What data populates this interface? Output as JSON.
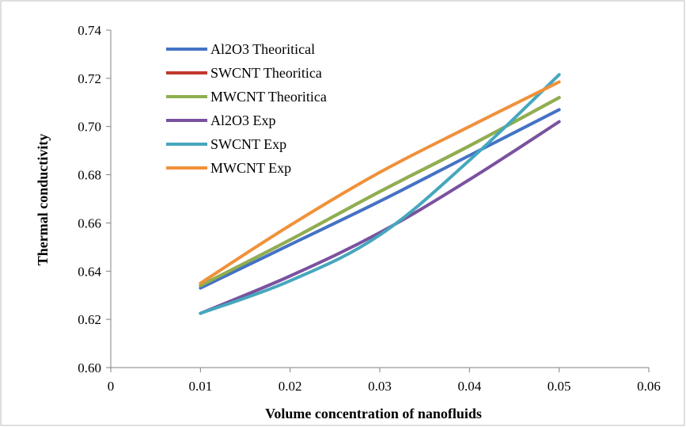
{
  "chart_data": {
    "type": "line",
    "title": "",
    "xlabel": "Volume concentration of nanofluids",
    "ylabel": "Thermal conductivity",
    "xlim": [
      0,
      0.06
    ],
    "ylim": [
      0.6,
      0.74
    ],
    "xticks": [
      "0",
      "0.01",
      "0.02",
      "0.03",
      "0.04",
      "0.05",
      "0.06"
    ],
    "yticks": [
      "0.60",
      "0.62",
      "0.64",
      "0.66",
      "0.68",
      "0.70",
      "0.72",
      "0.74"
    ],
    "grid": false,
    "legend_position": "top-left",
    "x": [
      0.01,
      0.02,
      0.03,
      0.04,
      0.05
    ],
    "series": [
      {
        "name": "Al2O3 Theoritical",
        "color": "#4472C4",
        "values": [
          0.633,
          0.651,
          0.669,
          0.688,
          0.707
        ]
      },
      {
        "name": "SWCNT Theoritica",
        "color": "#C0392B",
        "values": [
          0.634,
          0.653,
          0.673,
          0.692,
          0.712
        ]
      },
      {
        "name": "MWCNT Theoritica",
        "color": "#8DB04F",
        "values": [
          0.634,
          0.653,
          0.673,
          0.692,
          0.712
        ]
      },
      {
        "name": "Al2O3 Exp",
        "color": "#7A52A0",
        "values": [
          0.6225,
          0.638,
          0.656,
          0.678,
          0.702
        ]
      },
      {
        "name": "SWCNT Exp",
        "color": "#45A7BE",
        "values": [
          0.6225,
          0.636,
          0.655,
          0.686,
          0.7215
        ]
      },
      {
        "name": "MWCNT Exp",
        "color": "#F0913A",
        "values": [
          0.635,
          0.659,
          0.681,
          0.7,
          0.7185
        ]
      }
    ]
  }
}
